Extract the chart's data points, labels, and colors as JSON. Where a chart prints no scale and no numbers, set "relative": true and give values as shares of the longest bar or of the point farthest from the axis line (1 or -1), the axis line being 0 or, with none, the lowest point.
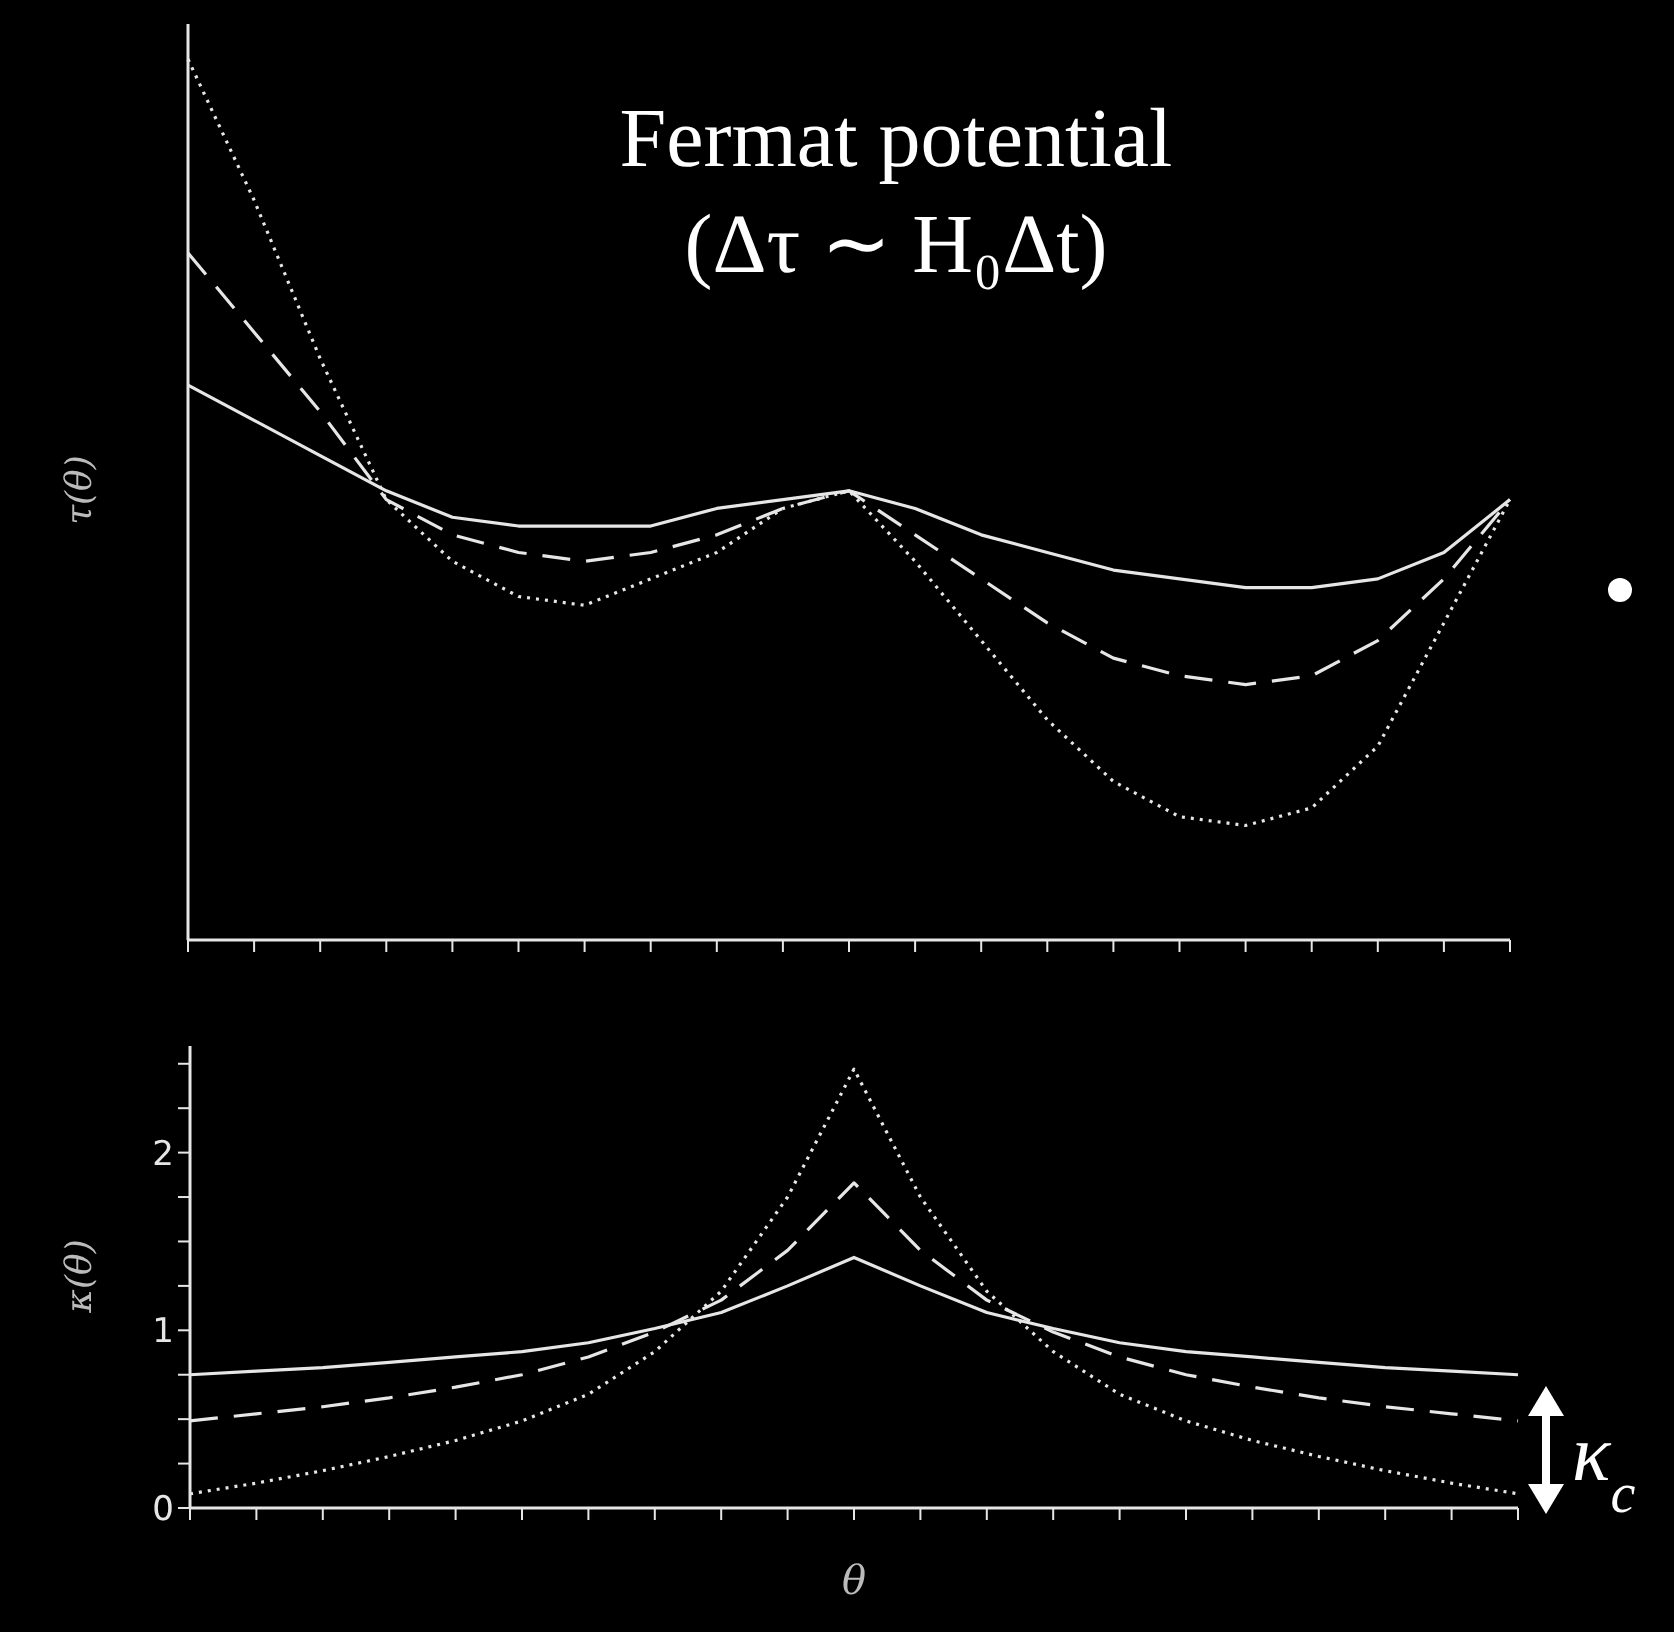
{
  "chart_data": [
    {
      "type": "line",
      "relative": true,
      "ylabel": "τ(θ)",
      "annotations": [
        "Fermat potential",
        "(Δτ ∼ H₀Δt)"
      ],
      "tick_labels": false,
      "grid": false,
      "legend": false,
      "marker": "none",
      "categories": [
        null,
        null,
        null,
        null,
        null,
        null,
        null,
        null,
        null,
        null,
        null,
        null,
        null,
        null,
        null,
        null,
        null,
        null,
        null,
        null,
        null
      ],
      "series": [
        {
          "color": "#e6e6e6",
          "line_style": "solid",
          "values": [
            0.63,
            0.59,
            0.55,
            0.51,
            0.48,
            0.47,
            0.47,
            0.47,
            0.49,
            0.5,
            0.51,
            0.49,
            0.46,
            0.44,
            0.42,
            0.41,
            0.4,
            0.4,
            0.41,
            0.44,
            0.5
          ]
        },
        {
          "color": "#e6e6e6",
          "line_style": "dashed",
          "values": [
            0.78,
            0.69,
            0.6,
            0.5,
            0.46,
            0.44,
            0.43,
            0.44,
            0.46,
            0.49,
            0.51,
            0.46,
            0.41,
            0.36,
            0.32,
            0.3,
            0.29,
            0.3,
            0.34,
            0.41,
            0.5
          ]
        },
        {
          "color": "#e6e6e6",
          "line_style": "dotted",
          "values": [
            1.0,
            0.84,
            0.66,
            0.5,
            0.43,
            0.39,
            0.38,
            0.41,
            0.44,
            0.49,
            0.51,
            0.43,
            0.34,
            0.25,
            0.18,
            0.14,
            0.13,
            0.15,
            0.22,
            0.36,
            0.5
          ]
        }
      ]
    },
    {
      "type": "line",
      "ylabel": "κ(θ)",
      "xlabel": "θ",
      "annotations": [
        "κ$_{c}$"
      ],
      "tick_labels": "y",
      "grid": false,
      "legend": false,
      "marker": "none",
      "ylim": [
        0,
        2.6
      ],
      "yticks": [
        0,
        {
          "value": 0.25,
          "label": null
        },
        {
          "value": 0.5,
          "label": null
        },
        {
          "value": 0.75,
          "label": null
        },
        1,
        {
          "value": 1.25,
          "label": null
        },
        {
          "value": 1.5,
          "label": null
        },
        {
          "value": 1.75,
          "label": null
        },
        2,
        {
          "value": 2.25,
          "label": null
        },
        {
          "value": 2.5,
          "label": null
        }
      ],
      "categories": [
        null,
        null,
        null,
        null,
        null,
        null,
        null,
        null,
        null,
        null,
        null,
        null,
        null,
        null,
        null,
        null,
        null,
        null,
        null,
        null,
        null
      ],
      "series": [
        {
          "color": "#e6e6e6",
          "line_style": "solid",
          "values": [
            0.75,
            0.77,
            0.79,
            0.82,
            0.85,
            0.88,
            0.93,
            1.01,
            1.1,
            1.25,
            1.41,
            1.25,
            1.1,
            1.01,
            0.93,
            0.88,
            0.85,
            0.82,
            0.79,
            0.77,
            0.75
          ]
        },
        {
          "color": "#e6e6e6",
          "line_style": "dashed",
          "values": [
            0.49,
            0.53,
            0.57,
            0.62,
            0.68,
            0.75,
            0.85,
            0.99,
            1.17,
            1.45,
            1.83,
            1.45,
            1.17,
            0.99,
            0.85,
            0.75,
            0.68,
            0.62,
            0.57,
            0.53,
            0.49
          ]
        },
        {
          "color": "#e6e6e6",
          "line_style": "dotted",
          "values": [
            0.08,
            0.14,
            0.21,
            0.29,
            0.38,
            0.49,
            0.64,
            0.88,
            1.22,
            1.75,
            2.47,
            1.75,
            1.22,
            0.88,
            0.64,
            0.49,
            0.38,
            0.29,
            0.21,
            0.14,
            0.08
          ]
        }
      ]
    }
  ]
}
